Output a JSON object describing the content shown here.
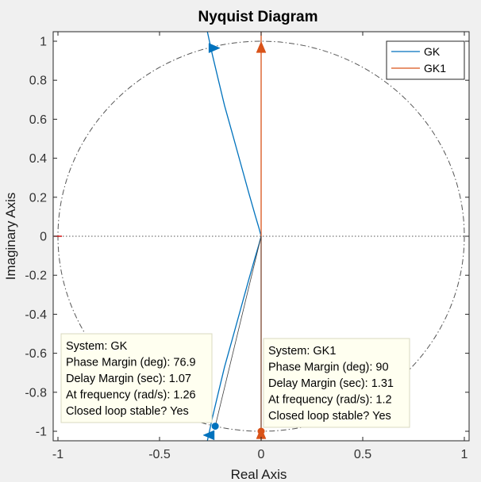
{
  "chart_data": {
    "type": "line",
    "title": "Nyquist Diagram",
    "xlabel": "Real Axis",
    "ylabel": "Imaginary Axis",
    "xlim": [
      -1,
      1
    ],
    "ylim": [
      -1.05,
      1.05
    ],
    "xticks": [
      {
        "value": -1,
        "label": "-1"
      },
      {
        "value": -0.5,
        "label": "-0.5"
      },
      {
        "value": 0,
        "label": "0"
      },
      {
        "value": 0.5,
        "label": "0.5"
      },
      {
        "value": 1,
        "label": "1"
      }
    ],
    "yticks": [
      {
        "value": 1,
        "label": "1"
      },
      {
        "value": 0.8,
        "label": "0.8"
      },
      {
        "value": 0.6,
        "label": "0.6"
      },
      {
        "value": 0.4,
        "label": "0.4"
      },
      {
        "value": 0.2,
        "label": "0.2"
      },
      {
        "value": 0,
        "label": "0"
      },
      {
        "value": -0.2,
        "label": "-0.2"
      },
      {
        "value": -0.4,
        "label": "-0.4"
      },
      {
        "value": -0.6,
        "label": "-0.6"
      },
      {
        "value": -0.8,
        "label": "-0.8"
      },
      {
        "value": -1,
        "label": "-1"
      }
    ],
    "grid": false,
    "unit_circle": true,
    "legend_position": "top-right",
    "critical_point": {
      "x": -1,
      "y": 0
    },
    "series": [
      {
        "name": "GK",
        "color": "#0072BD",
        "x": [
          -0.265,
          -0.24,
          -0.21,
          -0.18,
          -0.14,
          -0.1,
          -0.06,
          -0.03,
          -0.01,
          0.0,
          -0.01,
          -0.03,
          -0.06,
          -0.1,
          -0.14,
          -0.18,
          -0.21,
          -0.24,
          -0.265
        ],
        "y": [
          1.05,
          0.93,
          0.8,
          0.67,
          0.52,
          0.37,
          0.22,
          0.11,
          0.04,
          0.0,
          -0.04,
          -0.11,
          -0.22,
          -0.37,
          -0.52,
          -0.67,
          -0.8,
          -0.93,
          -1.05
        ],
        "arrows": [
          {
            "x": -0.23,
            "y": 0.965,
            "direction": "right"
          },
          {
            "x": -0.258,
            "y": -1.02,
            "direction": "left"
          }
        ],
        "margin_marker": {
          "x": -0.226,
          "y": -0.974
        }
      },
      {
        "name": "GK1",
        "color": "#D95319",
        "x": [
          0,
          0
        ],
        "y": [
          1.05,
          -1.05
        ],
        "arrows": [
          {
            "x": 0,
            "y": 0.97,
            "direction": "up"
          },
          {
            "x": 0,
            "y": -1.01,
            "direction": "up"
          }
        ],
        "margin_marker": {
          "x": 0,
          "y": -1.0
        }
      }
    ],
    "annotations": [
      {
        "anchor_series": "GK",
        "lines": [
          "System: GK",
          "Phase Margin (deg): 76.9",
          "Delay Margin (sec): 1.07",
          "At frequency (rad/s): 1.26",
          "Closed loop stable? Yes"
        ]
      },
      {
        "anchor_series": "GK1",
        "lines": [
          "System: GK1",
          "Phase Margin (deg): 90",
          "Delay Margin (sec): 1.31",
          "At frequency (rad/s): 1.2",
          "Closed loop stable? Yes"
        ]
      }
    ],
    "colors": {
      "figure_bg": "#f0f0f0",
      "axes_bg": "#ffffff",
      "axes_edge": "#262626",
      "unit_circle": "#555555",
      "zero_line": "#555555",
      "tooltip_bg": "#fffff0",
      "tooltip_border": "#d8d8c0",
      "critical_point": "#cc0000"
    }
  }
}
